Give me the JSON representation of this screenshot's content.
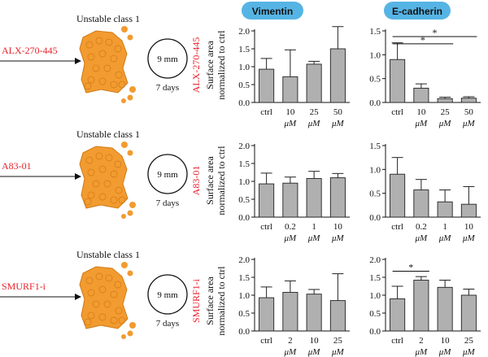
{
  "headers": {
    "left": "Vimentin",
    "right": "E-cadherin"
  },
  "header_color": "#56b4e5",
  "accent_color": "#e8212b",
  "bar_color": "#b0b0b0",
  "cell_color": "#f29b30",
  "ylabel_line1": "Surface area",
  "ylabel_line2": "normalized to ctrl",
  "unit": "μM",
  "rows": [
    {
      "drug": "ALX-270-445",
      "label": "Unstable class 1",
      "dish": "9 mm",
      "duration": "7 days"
    },
    {
      "drug": "A83-01",
      "label": "Unstable class 1",
      "dish": "9 mm",
      "duration": "7 days"
    },
    {
      "drug": "SMURF1-i",
      "label": "Unstable class 1",
      "dish": "9 mm",
      "duration": "7 days"
    }
  ],
  "chart_data": [
    {
      "type": "bar",
      "row": 0,
      "panel": "Vimentin",
      "ylabel": "Surface area normalized to ctrl",
      "ylim": [
        0,
        2.0
      ],
      "yticks": [
        "0.0",
        "0.5",
        "1.0",
        "1.5",
        "2.0"
      ],
      "categories": [
        [
          "ctrl",
          ""
        ],
        [
          "10",
          "μM"
        ],
        [
          "25",
          "μM"
        ],
        [
          "50",
          "μM"
        ]
      ],
      "values": [
        0.93,
        0.72,
        1.07,
        1.5
      ],
      "errors": [
        0.3,
        0.75,
        0.08,
        0.62
      ],
      "significance": []
    },
    {
      "type": "bar",
      "row": 0,
      "panel": "E-cadherin",
      "ylim": [
        0,
        1.5
      ],
      "yticks": [
        "0.0",
        "0.5",
        "1.0",
        "1.5"
      ],
      "categories": [
        [
          "ctrl",
          ""
        ],
        [
          "10",
          "μM"
        ],
        [
          "25",
          "μM"
        ],
        [
          "50",
          "μM"
        ]
      ],
      "values": [
        0.9,
        0.3,
        0.08,
        0.09
      ],
      "errors": [
        0.35,
        0.09,
        0.03,
        0.03
      ],
      "significance": [
        {
          "from": 0,
          "to": 3,
          "level": 1.38,
          "mark": "*"
        },
        {
          "from": 0,
          "to": 2,
          "level": 1.23,
          "mark": "*"
        }
      ]
    },
    {
      "type": "bar",
      "row": 1,
      "panel": "Vimentin",
      "ylabel": "Surface area normalized to ctrl",
      "ylim": [
        0,
        2.0
      ],
      "yticks": [
        "0.0",
        "0.5",
        "1.0",
        "1.5",
        "2.0"
      ],
      "categories": [
        [
          "ctrl",
          ""
        ],
        [
          "0.2",
          "μM"
        ],
        [
          "1",
          "μM"
        ],
        [
          "10",
          "μM"
        ]
      ],
      "values": [
        0.93,
        0.95,
        1.08,
        1.1
      ],
      "errors": [
        0.3,
        0.17,
        0.2,
        0.12
      ],
      "significance": []
    },
    {
      "type": "bar",
      "row": 1,
      "panel": "E-cadherin",
      "ylim": [
        0,
        1.5
      ],
      "yticks": [
        "0.0",
        "0.5",
        "1.0",
        "1.5"
      ],
      "categories": [
        [
          "ctrl",
          ""
        ],
        [
          "0.2",
          "μM"
        ],
        [
          "1",
          "μM"
        ],
        [
          "10",
          "μM"
        ]
      ],
      "values": [
        0.9,
        0.57,
        0.32,
        0.27
      ],
      "errors": [
        0.35,
        0.22,
        0.25,
        0.37
      ],
      "significance": []
    },
    {
      "type": "bar",
      "row": 2,
      "panel": "Vimentin",
      "ylabel": "Surface area normalized to ctrl",
      "ylim": [
        0,
        2.0
      ],
      "yticks": [
        "0.0",
        "0.5",
        "1.0",
        "1.5",
        "2.0"
      ],
      "categories": [
        [
          "ctrl",
          ""
        ],
        [
          "2",
          "μM"
        ],
        [
          "10",
          "μM"
        ],
        [
          "25",
          "μM"
        ]
      ],
      "values": [
        0.93,
        1.08,
        1.03,
        0.85
      ],
      "errors": [
        0.3,
        0.32,
        0.13,
        0.75
      ],
      "significance": []
    },
    {
      "type": "bar",
      "row": 2,
      "panel": "E-cadherin",
      "ylim": [
        0,
        2.0
      ],
      "yticks": [
        "0.0",
        "0.5",
        "1.0",
        "1.5",
        "2.0"
      ],
      "categories": [
        [
          "ctrl",
          ""
        ],
        [
          "2",
          "μM"
        ],
        [
          "10",
          "μM"
        ],
        [
          "25",
          "μM"
        ]
      ],
      "values": [
        0.9,
        1.42,
        1.22,
        1.0
      ],
      "errors": [
        0.35,
        0.1,
        0.2,
        0.17
      ],
      "significance": [
        {
          "from": 0,
          "to": 1,
          "level": 1.67,
          "mark": "*"
        }
      ]
    }
  ]
}
